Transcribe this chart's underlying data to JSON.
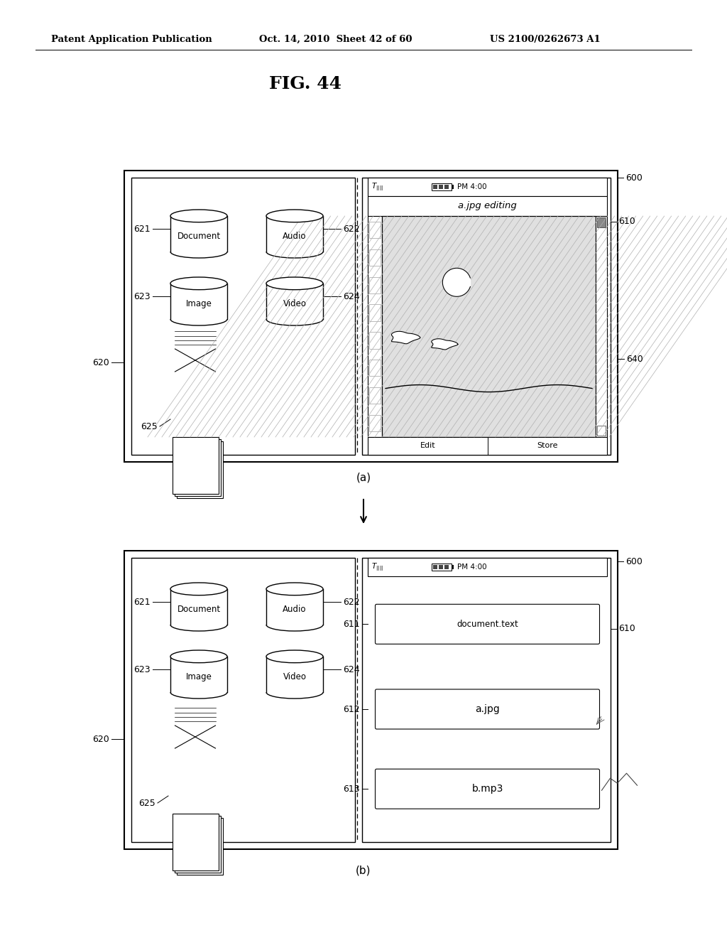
{
  "bg_color": "#ffffff",
  "header_text": "Patent Application Publication",
  "header_date": "Oct. 14, 2010  Sheet 42 of 60",
  "header_patent": "US 2100/0262673 A1",
  "fig_title": "FIG. 44",
  "subfig_a_label": "(a)",
  "subfig_b_label": "(b)",
  "doc_label": "Document",
  "audio_label": "Audio",
  "image_label": "Image",
  "video_label": "Video",
  "status_bar_text": "PM 4:00",
  "editing_title": "a.jpg editing",
  "edit_btn": "Edit",
  "store_btn": "Store",
  "file1": "document.text",
  "file2": "a.jpg",
  "file3": "b.mp3",
  "lbl_600a": "600",
  "lbl_610a": "610",
  "lbl_640a": "640",
  "lbl_620a": "620",
  "lbl_621a": "621",
  "lbl_622a": "622",
  "lbl_623a": "623",
  "lbl_624a": "624",
  "lbl_625a": "625",
  "lbl_600b": "600",
  "lbl_610b": "610",
  "lbl_620b": "620",
  "lbl_621b": "621",
  "lbl_622b": "622",
  "lbl_623b": "623",
  "lbl_624b": "624",
  "lbl_625b": "625",
  "lbl_611b": "611",
  "lbl_612b": "612",
  "lbl_613b": "613"
}
